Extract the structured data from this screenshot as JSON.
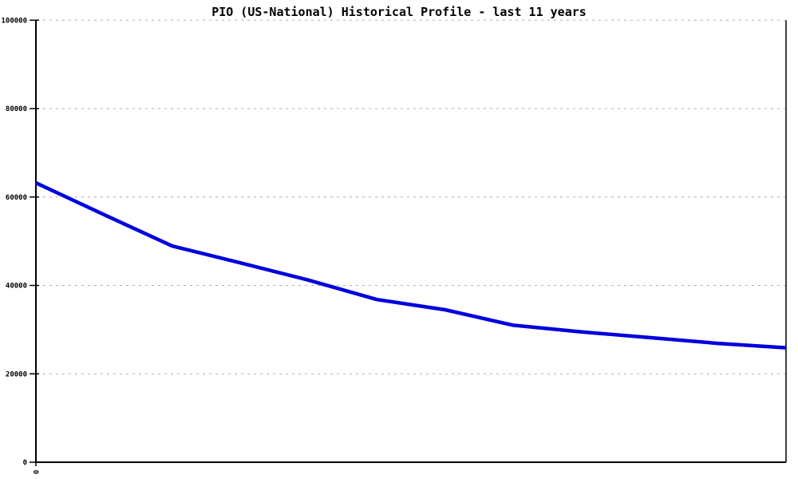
{
  "chart_data": {
    "type": "line",
    "title": "PIO (US-National) Historical Profile - last 11 years",
    "x": [
      0,
      1,
      2,
      3,
      4,
      5,
      6,
      7,
      8,
      9,
      10,
      11
    ],
    "values": [
      63200,
      56000,
      48900,
      45100,
      41200,
      36800,
      34500,
      31000,
      29500,
      28200,
      26900,
      25900
    ],
    "xlim": [
      0,
      11
    ],
    "ylim": [
      0,
      100000
    ],
    "y_ticks": [
      0,
      20000,
      40000,
      60000,
      80000,
      100000
    ],
    "y_tick_labels": [
      "0",
      "20000",
      "40000",
      "60000",
      "80000",
      "100000"
    ],
    "x_ticks": [
      0
    ],
    "x_tick_labels": [
      "0"
    ],
    "x_tick_label_rotation": -90,
    "grid": "horizontal-dashed",
    "legend_position": "none",
    "line_color": "#0000dd",
    "grid_color": "#b0b0b0",
    "axis_color": "#000000",
    "background_color": "#ffffff"
  }
}
